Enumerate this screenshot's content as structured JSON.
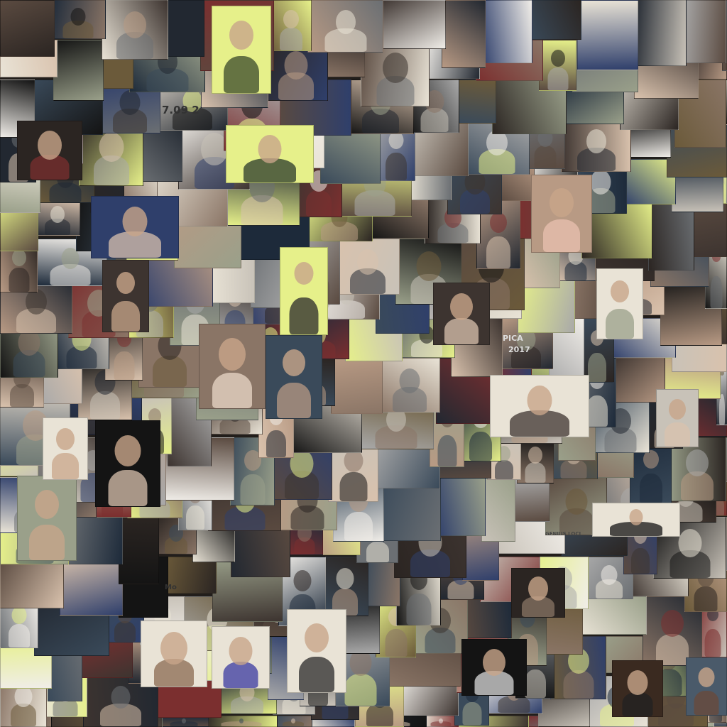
{
  "collage": {
    "tile_count": 150,
    "palette": [
      "#2b2522",
      "#3d3430",
      "#5a4a40",
      "#8a7566",
      "#b89a84",
      "#d9c2ad",
      "#e9e3d6",
      "#f0ede8",
      "#141414",
      "#222831",
      "#3a4a5a",
      "#6b5a3a",
      "#7b2f2f",
      "#2f3f6b",
      "#9aa08a",
      "#e6f08a",
      "#c8c2b8",
      "#1d2a3a",
      "#6b6f73",
      "#a9a9a9"
    ]
  },
  "texts": {
    "wall_date": "7.09 2",
    "sign_year": "2017",
    "sign_fragment": "PICA",
    "wall_text": "GENIUS LOCI",
    "card_text": "Mo"
  }
}
